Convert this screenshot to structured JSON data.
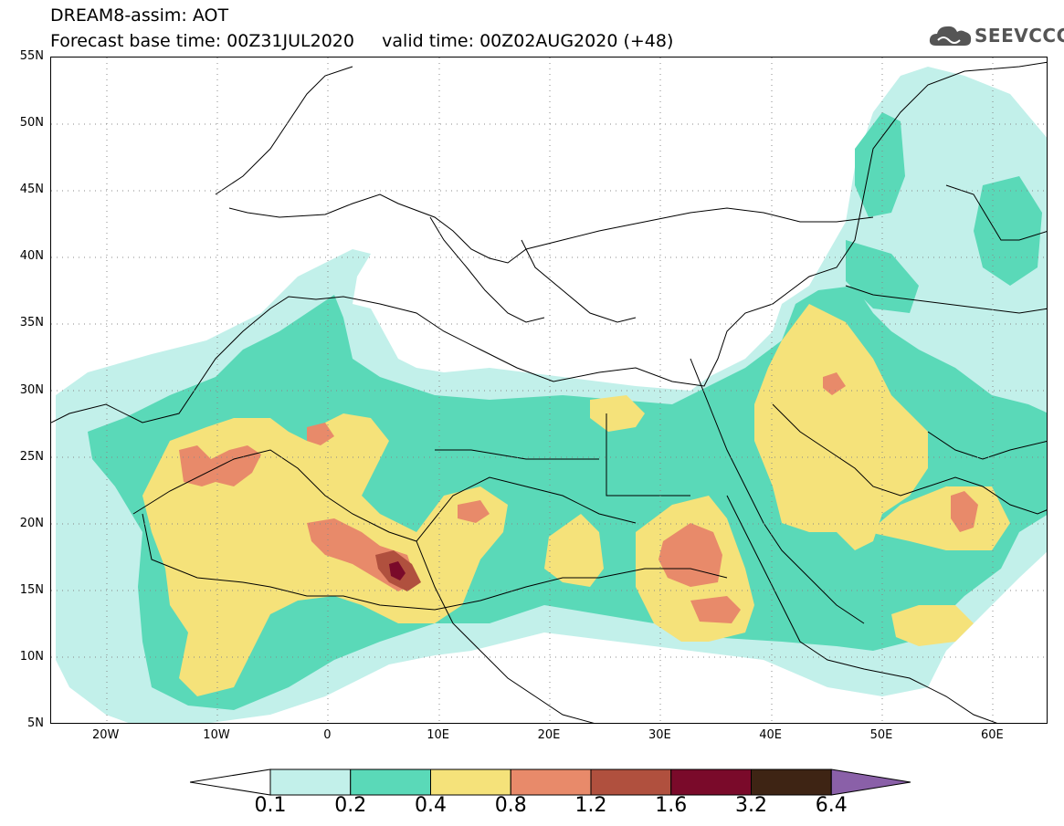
{
  "title": {
    "line1": "DREAM8-assim: AOT",
    "line2": "Forecast base time: 00Z31JUL2020     valid time: 00Z02AUG2020 (+48)"
  },
  "logo": {
    "text": "SEEVCCC",
    "icon": "cloud-icon"
  },
  "map": {
    "lat_labels": [
      "55N",
      "50N",
      "45N",
      "40N",
      "35N",
      "30N",
      "25N",
      "20N",
      "15N",
      "10N",
      "5N"
    ],
    "lon_labels": [
      "20W",
      "10W",
      "0",
      "10E",
      "20E",
      "30E",
      "40E",
      "50E",
      "60E"
    ],
    "lat_range": [
      5,
      55
    ],
    "lon_range": [
      -25,
      65
    ]
  },
  "colorbar": {
    "labels": [
      "0.1",
      "0.2",
      "0.4",
      "0.8",
      "1.2",
      "1.6",
      "3.2",
      "6.4"
    ],
    "colors": [
      "#c2f0ea",
      "#5ad9b8",
      "#f5e27a",
      "#e88a6a",
      "#b0503e",
      "#7a0a2a",
      "#3e2414",
      "#8a60a8"
    ],
    "under_color": "#ffffff",
    "over_color": "#8a60a8"
  }
}
